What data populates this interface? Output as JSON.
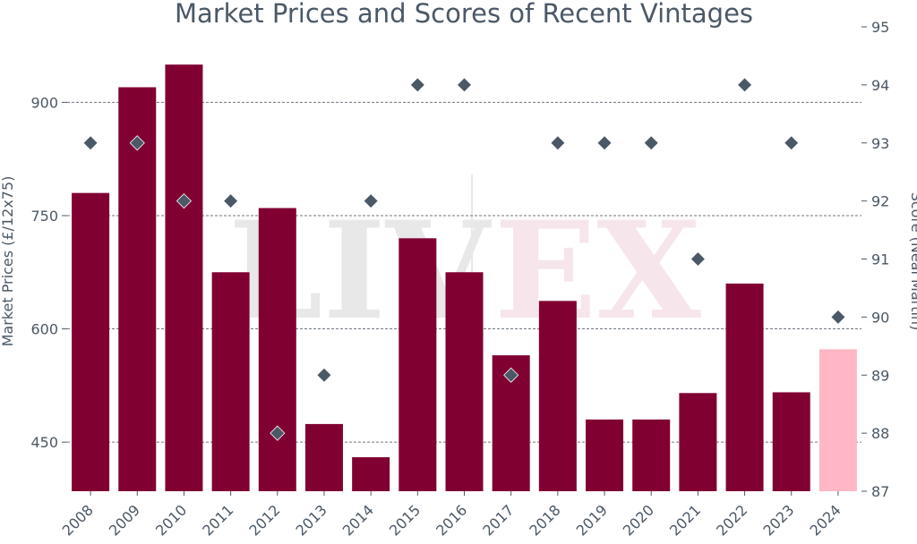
{
  "chart_data": {
    "type": "bar",
    "title": "Market Prices and Scores of Recent Vintages",
    "categories": [
      "2008",
      "2009",
      "2010",
      "2011",
      "2012",
      "2013",
      "2014",
      "2015",
      "2016",
      "2017",
      "2018",
      "2019",
      "2020",
      "2021",
      "2022",
      "2023",
      "2024"
    ],
    "series": [
      {
        "name": "Market Prices",
        "type": "bar",
        "axis": "left",
        "values": [
          780,
          920,
          950,
          675,
          760,
          474,
          430,
          720,
          675,
          565,
          637,
          480,
          480,
          515,
          660,
          516,
          573
        ],
        "colors": [
          "#800032",
          "#800032",
          "#800032",
          "#800032",
          "#800032",
          "#800032",
          "#800032",
          "#800032",
          "#800032",
          "#800032",
          "#800032",
          "#800032",
          "#800032",
          "#800032",
          "#800032",
          "#800032",
          "#ffb7c5"
        ]
      },
      {
        "name": "Score",
        "type": "scatter",
        "axis": "right",
        "marker": "diamond",
        "color": "#4b5866",
        "values": [
          93,
          93,
          92,
          92,
          88,
          89,
          92,
          94,
          94,
          89,
          93,
          93,
          93,
          91,
          94,
          93,
          90
        ]
      }
    ],
    "y_left": {
      "label": "Market Prices (£/12x75)",
      "range": [
        385,
        1000
      ],
      "ticks": [
        450,
        600,
        750,
        900
      ]
    },
    "y_right": {
      "label": "Score (Neal Martin)",
      "range": [
        87,
        95
      ],
      "ticks": [
        87,
        88,
        89,
        90,
        91,
        92,
        93,
        94,
        95
      ]
    },
    "grid": "horizontal dashed",
    "watermark": "LIV-EX"
  }
}
